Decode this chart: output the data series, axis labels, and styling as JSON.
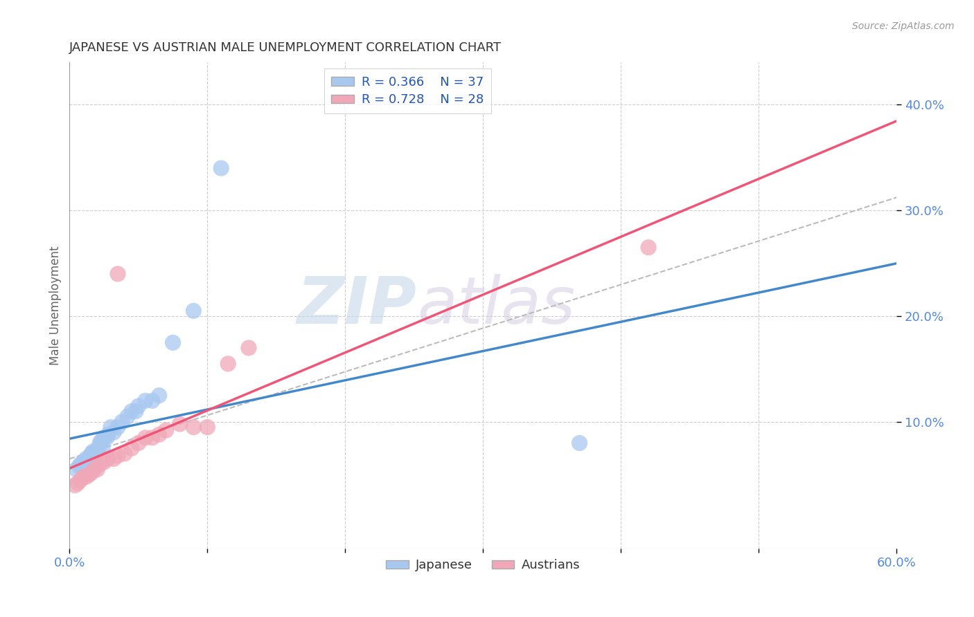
{
  "title": "JAPANESE VS AUSTRIAN MALE UNEMPLOYMENT CORRELATION CHART",
  "source": "Source: ZipAtlas.com",
  "ylabel": "Male Unemployment",
  "xlim": [
    0.0,
    0.6
  ],
  "ylim": [
    -0.02,
    0.44
  ],
  "xtick_positions": [
    0.0,
    0.6
  ],
  "xtick_labels": [
    "0.0%",
    "60.0%"
  ],
  "xtick_minor_positions": [
    0.1,
    0.2,
    0.3,
    0.4,
    0.5
  ],
  "ytick_positions": [
    0.1,
    0.2,
    0.3,
    0.4
  ],
  "ytick_labels": [
    "10.0%",
    "20.0%",
    "30.0%",
    "40.0%"
  ],
  "R_japanese": 0.366,
  "N_japanese": 37,
  "R_austrians": 0.728,
  "N_austrians": 28,
  "japanese_color": "#a8c8f0",
  "austrian_color": "#f0a8b8",
  "japanese_line_color": "#4488cc",
  "austrian_line_color": "#ee5577",
  "dashed_line_color": "#bbbbbb",
  "background_color": "#ffffff",
  "grid_color": "#cccccc",
  "watermark_text": "ZIP",
  "watermark_text2": "atlas",
  "japanese_x": [
    0.005,
    0.007,
    0.008,
    0.01,
    0.01,
    0.012,
    0.013,
    0.014,
    0.015,
    0.015,
    0.016,
    0.017,
    0.018,
    0.019,
    0.02,
    0.021,
    0.022,
    0.023,
    0.024,
    0.025,
    0.027,
    0.028,
    0.03,
    0.032,
    0.035,
    0.038,
    0.042,
    0.045,
    0.048,
    0.05,
    0.055,
    0.06,
    0.065,
    0.075,
    0.09,
    0.37,
    0.11
  ],
  "japanese_y": [
    0.055,
    0.058,
    0.06,
    0.062,
    0.06,
    0.065,
    0.063,
    0.065,
    0.068,
    0.067,
    0.07,
    0.072,
    0.07,
    0.068,
    0.072,
    0.075,
    0.08,
    0.082,
    0.075,
    0.085,
    0.085,
    0.088,
    0.095,
    0.09,
    0.095,
    0.1,
    0.105,
    0.11,
    0.11,
    0.115,
    0.12,
    0.12,
    0.125,
    0.175,
    0.205,
    0.08,
    0.34
  ],
  "austrian_x": [
    0.004,
    0.006,
    0.008,
    0.01,
    0.012,
    0.014,
    0.016,
    0.018,
    0.02,
    0.022,
    0.025,
    0.028,
    0.032,
    0.035,
    0.04,
    0.045,
    0.05,
    0.055,
    0.06,
    0.065,
    0.07,
    0.08,
    0.09,
    0.1,
    0.115,
    0.13,
    0.42,
    0.035
  ],
  "austrian_y": [
    0.04,
    0.042,
    0.045,
    0.048,
    0.048,
    0.05,
    0.052,
    0.055,
    0.055,
    0.06,
    0.062,
    0.065,
    0.065,
    0.068,
    0.07,
    0.075,
    0.08,
    0.085,
    0.085,
    0.088,
    0.092,
    0.098,
    0.095,
    0.095,
    0.155,
    0.17,
    0.265,
    0.24
  ]
}
